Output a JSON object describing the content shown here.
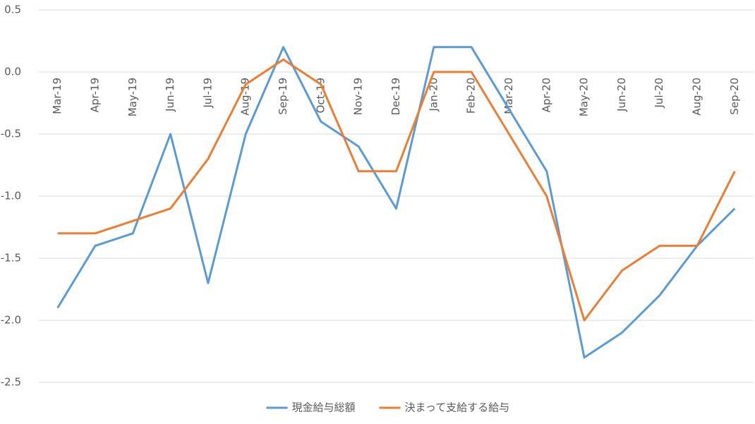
{
  "chart_data": {
    "type": "line",
    "categories": [
      "Mar-19",
      "Apr-19",
      "May-19",
      "Jun-19",
      "Jul-19",
      "Aug-19",
      "Sep-19",
      "Oct-19",
      "Nov-19",
      "Dec-19",
      "Jan-20",
      "Feb-20",
      "Mar-20",
      "Apr-20",
      "May-20",
      "Jun-20",
      "Jul-20",
      "Aug-20",
      "Sep-20"
    ],
    "series": [
      {
        "name": "現金給与総額",
        "color": "#5b9bd5",
        "values": [
          -1.9,
          -1.4,
          -1.3,
          -0.5,
          -1.7,
          -0.5,
          0.2,
          -0.4,
          -0.6,
          -1.1,
          0.2,
          0.2,
          -0.3,
          -0.8,
          -2.3,
          -2.1,
          -1.8,
          -1.4,
          -1.1
        ]
      },
      {
        "name": "決まって支給する給与",
        "color": "#ed7d31",
        "values": [
          -1.3,
          -1.3,
          -1.2,
          -1.1,
          -0.7,
          -0.1,
          0.1,
          -0.1,
          -0.8,
          -0.8,
          0.0,
          0.0,
          -0.5,
          -1.0,
          -2.0,
          -1.6,
          -1.4,
          -1.4,
          -0.8
        ]
      }
    ],
    "ylim": [
      -2.5,
      0.5
    ],
    "yticks": [
      0.5,
      {
        "value": 0,
        "label": "0.0"
      },
      -0.5,
      {
        "value": -1,
        "label": "-1.0"
      },
      -1.5,
      {
        "value": -2,
        "label": "-2.0"
      },
      -2.5
    ],
    "grid": true,
    "legend": "bottom"
  }
}
